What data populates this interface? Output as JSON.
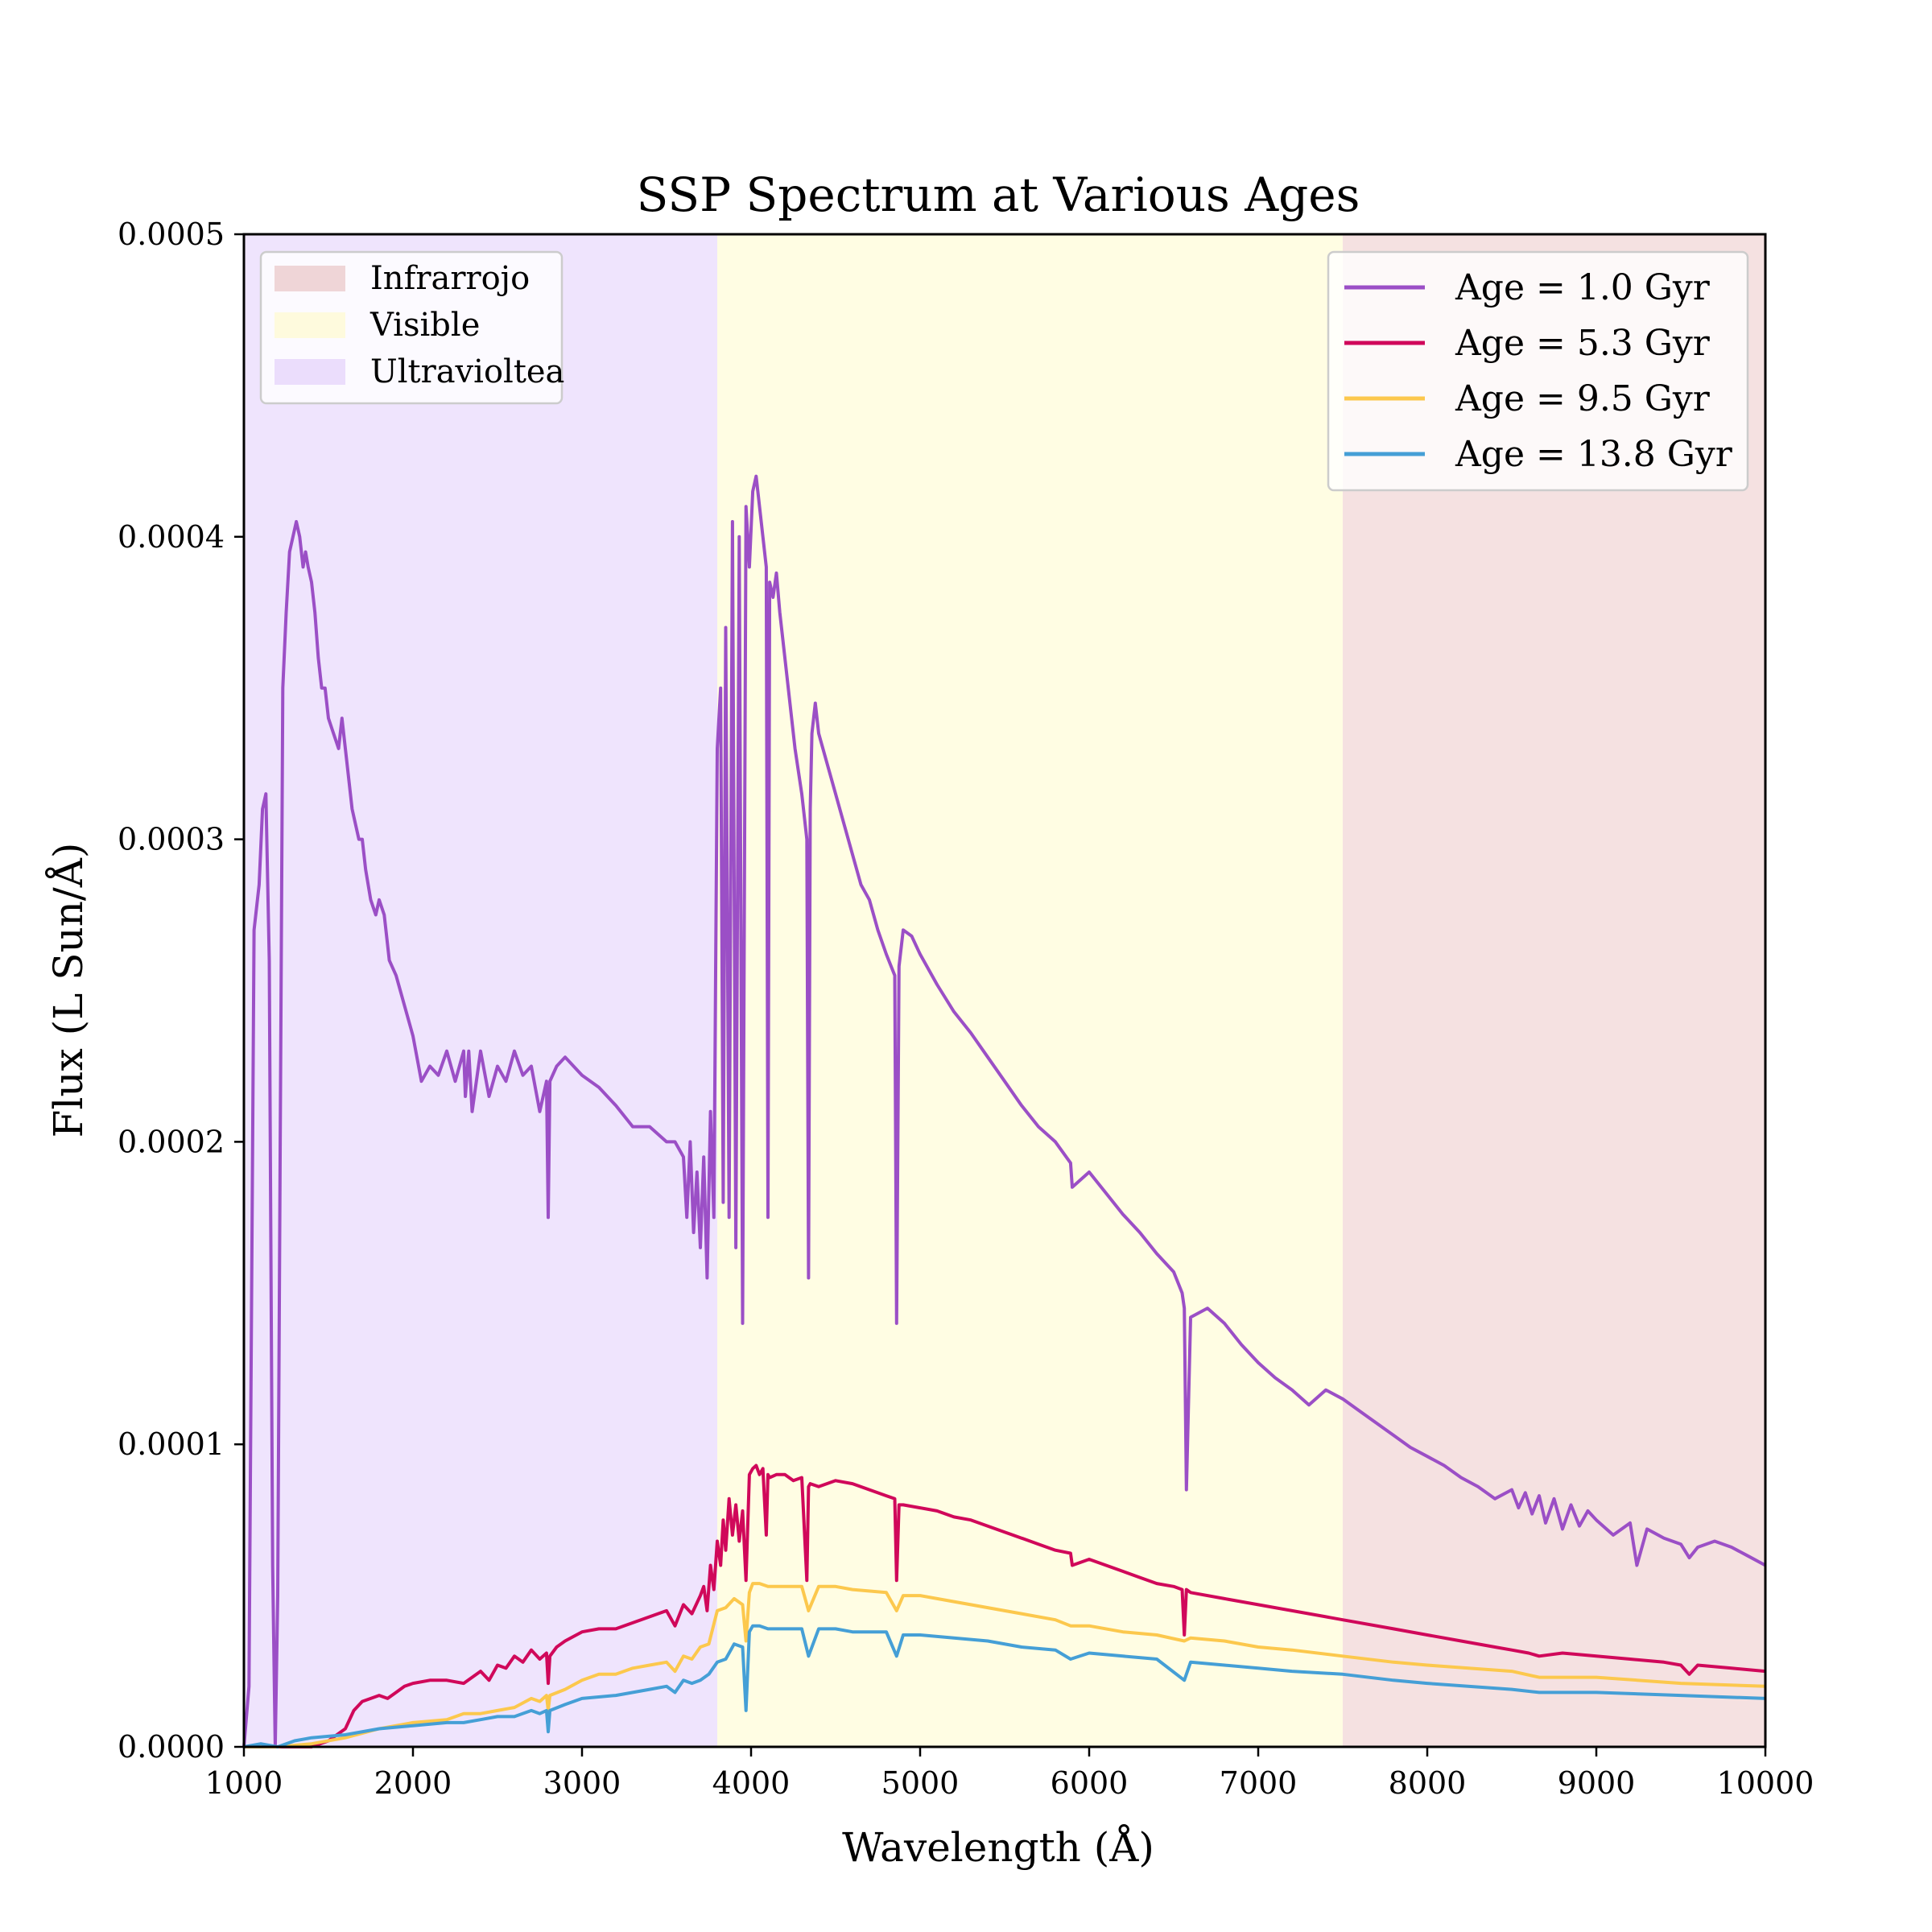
{
  "chart_data": {
    "type": "line",
    "title": "SSP Spectrum at Various Ages",
    "xlabel": "Wavelength (Å)",
    "ylabel": "Flux (L Sun/Å)",
    "xlim": [
      1000,
      10000
    ],
    "ylim": [
      0,
      0.0005
    ],
    "x_ticks": [
      1000,
      2000,
      3000,
      4000,
      5000,
      6000,
      7000,
      8000,
      9000,
      10000
    ],
    "x_tick_labels": [
      "1000",
      "2000",
      "3000",
      "4000",
      "5000",
      "6000",
      "7000",
      "8000",
      "9000",
      "10000"
    ],
    "y_ticks": [
      0,
      0.0001,
      0.0002,
      0.0003,
      0.0004,
      0.0005
    ],
    "y_tick_labels": [
      "0.0000",
      "0.0001",
      "0.0002",
      "0.0003",
      "0.0004",
      "0.0005"
    ],
    "grid": false,
    "bands": [
      {
        "name": "Infrarrojo",
        "x0": 7500,
        "x1": 10000,
        "color": "#e6b8b8"
      },
      {
        "name": "Visible",
        "x0": 3800,
        "x1": 7500,
        "color": "#fffbd0"
      },
      {
        "name": "Ultravioltea",
        "x0": 1000,
        "x1": 3800,
        "color": "#e4d2fb"
      }
    ],
    "band_legend_placement": "upper-left",
    "series_legend_placement": "upper-right",
    "series": [
      {
        "name": "Age = 1.0 Gyr",
        "color": "#9b4fc6",
        "x": [
          1000,
          1030,
          1060,
          1090,
          1110,
          1130,
          1150,
          1170,
          1185,
          1200,
          1215,
          1230,
          1250,
          1270,
          1290,
          1310,
          1330,
          1350,
          1365,
          1380,
          1400,
          1420,
          1440,
          1460,
          1480,
          1500,
          1530,
          1560,
          1580,
          1600,
          1620,
          1640,
          1660,
          1680,
          1700,
          1720,
          1750,
          1780,
          1800,
          1830,
          1860,
          1900,
          1950,
          2000,
          2050,
          2100,
          2150,
          2200,
          2250,
          2300,
          2310,
          2330,
          2350,
          2400,
          2450,
          2500,
          2550,
          2600,
          2650,
          2700,
          2750,
          2790,
          2800,
          2810,
          2850,
          2900,
          2950,
          3000,
          3100,
          3200,
          3300,
          3400,
          3500,
          3550,
          3600,
          3620,
          3640,
          3660,
          3680,
          3700,
          3720,
          3740,
          3760,
          3780,
          3800,
          3820,
          3835,
          3850,
          3870,
          3890,
          3910,
          3930,
          3950,
          3970,
          3990,
          4010,
          4030,
          4050,
          4070,
          4090,
          4100,
          4110,
          4130,
          4150,
          4170,
          4200,
          4230,
          4260,
          4300,
          4330,
          4340,
          4350,
          4360,
          4380,
          4400,
          4450,
          4500,
          4550,
          4600,
          4650,
          4700,
          4750,
          4800,
          4850,
          4861,
          4875,
          4900,
          4950,
          5000,
          5100,
          5200,
          5300,
          5400,
          5500,
          5600,
          5700,
          5800,
          5890,
          5900,
          6000,
          6100,
          6200,
          6300,
          6400,
          6500,
          6550,
          6563,
          6575,
          6600,
          6700,
          6800,
          6900,
          7000,
          7100,
          7200,
          7300,
          7400,
          7500,
          7600,
          7700,
          7800,
          7900,
          8000,
          8100,
          8200,
          8300,
          8400,
          8500,
          8540,
          8580,
          8620,
          8662,
          8700,
          8750,
          8800,
          8850,
          8900,
          8950,
          9000,
          9100,
          9200,
          9240,
          9300,
          9400,
          9500,
          9550,
          9600,
          9700,
          9800,
          9900,
          10000
        ],
        "y": [
          0.0,
          2e-05,
          0.00027,
          0.000285,
          0.00031,
          0.000315,
          0.00026,
          6e-05,
          0.0,
          5e-05,
          0.0002,
          0.00035,
          0.000375,
          0.000395,
          0.0004,
          0.000405,
          0.0004,
          0.00039,
          0.000395,
          0.00039,
          0.000385,
          0.000375,
          0.00036,
          0.00035,
          0.00035,
          0.00034,
          0.000335,
          0.00033,
          0.00034,
          0.00033,
          0.00032,
          0.00031,
          0.000305,
          0.0003,
          0.0003,
          0.00029,
          0.00028,
          0.000275,
          0.00028,
          0.000275,
          0.00026,
          0.000255,
          0.000245,
          0.000235,
          0.00022,
          0.000225,
          0.000222,
          0.00023,
          0.00022,
          0.00023,
          0.000215,
          0.00023,
          0.00021,
          0.00023,
          0.000215,
          0.000225,
          0.00022,
          0.00023,
          0.000222,
          0.000225,
          0.00021,
          0.00022,
          0.000175,
          0.00022,
          0.000225,
          0.000228,
          0.000225,
          0.000222,
          0.000218,
          0.000212,
          0.000205,
          0.000205,
          0.0002,
          0.0002,
          0.000195,
          0.000175,
          0.0002,
          0.00017,
          0.00019,
          0.000165,
          0.000195,
          0.000155,
          0.00021,
          0.000175,
          0.00033,
          0.00035,
          0.00018,
          0.00037,
          0.000175,
          0.000405,
          0.000165,
          0.0004,
          0.00014,
          0.00041,
          0.00039,
          0.000415,
          0.00042,
          0.00041,
          0.0004,
          0.00039,
          0.000175,
          0.000385,
          0.00038,
          0.000388,
          0.000375,
          0.00036,
          0.000345,
          0.00033,
          0.000315,
          0.0003,
          0.000155,
          0.00031,
          0.000335,
          0.000345,
          0.000335,
          0.000325,
          0.000315,
          0.000305,
          0.000295,
          0.000285,
          0.00028,
          0.00027,
          0.000262,
          0.000255,
          0.00014,
          0.000258,
          0.00027,
          0.000268,
          0.000262,
          0.000252,
          0.000243,
          0.000236,
          0.000228,
          0.00022,
          0.000212,
          0.000205,
          0.0002,
          0.000193,
          0.000185,
          0.00019,
          0.000183,
          0.000176,
          0.00017,
          0.000163,
          0.000157,
          0.00015,
          0.000145,
          8.5e-05,
          0.000142,
          0.000145,
          0.00014,
          0.000133,
          0.000127,
          0.000122,
          0.000118,
          0.000113,
          0.000118,
          0.000115,
          0.000111,
          0.000107,
          0.000103,
          9.9e-05,
          9.6e-05,
          9.3e-05,
          8.9e-05,
          8.6e-05,
          8.2e-05,
          8.5e-05,
          7.9e-05,
          8.4e-05,
          7.7e-05,
          8.3e-05,
          7.4e-05,
          8.2e-05,
          7.2e-05,
          8e-05,
          7.3e-05,
          7.8e-05,
          7.5e-05,
          7e-05,
          7.4e-05,
          6e-05,
          7.2e-05,
          6.9e-05,
          6.7e-05,
          6.25e-05,
          6.6e-05,
          6.8e-05,
          6.6e-05,
          6.3e-05,
          6e-05
        ]
      },
      {
        "name": "Age = 5.3 Gyr",
        "color": "#d0085a",
        "x": [
          1000,
          1200,
          1400,
          1500,
          1600,
          1650,
          1700,
          1750,
          1800,
          1850,
          1900,
          1950,
          2000,
          2100,
          2200,
          2300,
          2400,
          2450,
          2500,
          2550,
          2600,
          2650,
          2700,
          2750,
          2790,
          2800,
          2810,
          2850,
          2900,
          3000,
          3100,
          3200,
          3300,
          3400,
          3500,
          3550,
          3600,
          3650,
          3700,
          3720,
          3740,
          3760,
          3780,
          3800,
          3820,
          3835,
          3850,
          3870,
          3890,
          3910,
          3930,
          3950,
          3970,
          3990,
          4010,
          4030,
          4050,
          4070,
          4090,
          4100,
          4110,
          4150,
          4200,
          4250,
          4300,
          4330,
          4340,
          4350,
          4400,
          4500,
          4600,
          4700,
          4800,
          4850,
          4861,
          4875,
          4900,
          5000,
          5100,
          5200,
          5300,
          5400,
          5500,
          5600,
          5700,
          5800,
          5890,
          5900,
          6000,
          6100,
          6200,
          6300,
          6400,
          6500,
          6550,
          6563,
          6575,
          6600,
          6800,
          7000,
          7200,
          7400,
          7500,
          7800,
          8000,
          8200,
          8400,
          8500,
          8600,
          8662,
          8800,
          9000,
          9200,
          9400,
          9500,
          9550,
          9600,
          9800,
          10000
        ],
        "y": [
          0.0,
          0.0,
          0.0,
          2e-06,
          6e-06,
          1.2e-05,
          1.5e-05,
          1.6e-05,
          1.7e-05,
          1.6e-05,
          1.8e-05,
          2e-05,
          2.1e-05,
          2.2e-05,
          2.2e-05,
          2.1e-05,
          2.5e-05,
          2.2e-05,
          2.7e-05,
          2.6e-05,
          3e-05,
          2.8e-05,
          3.2e-05,
          2.9e-05,
          3.1e-05,
          2.1e-05,
          3e-05,
          3.3e-05,
          3.5e-05,
          3.8e-05,
          3.9e-05,
          3.9e-05,
          4.1e-05,
          4.3e-05,
          4.5e-05,
          4e-05,
          4.7e-05,
          4.4e-05,
          5e-05,
          5.3e-05,
          4.5e-05,
          6e-05,
          5.2e-05,
          6.8e-05,
          6e-05,
          7.5e-05,
          6.5e-05,
          8.2e-05,
          7e-05,
          8e-05,
          6.8e-05,
          7.8e-05,
          5.5e-05,
          9e-05,
          9.2e-05,
          9.3e-05,
          9e-05,
          9.2e-05,
          7e-05,
          9e-05,
          8.9e-05,
          9e-05,
          9e-05,
          8.8e-05,
          8.9e-05,
          5.5e-05,
          8.6e-05,
          8.7e-05,
          8.6e-05,
          8.8e-05,
          8.7e-05,
          8.5e-05,
          8.3e-05,
          8.2e-05,
          5.5e-05,
          8e-05,
          8e-05,
          7.9e-05,
          7.8e-05,
          7.6e-05,
          7.5e-05,
          7.3e-05,
          7.1e-05,
          6.9e-05,
          6.7e-05,
          6.5e-05,
          6.4e-05,
          6e-05,
          6.2e-05,
          6e-05,
          5.8e-05,
          5.6e-05,
          5.4e-05,
          5.3e-05,
          5.2e-05,
          3.7e-05,
          5.2e-05,
          5.1e-05,
          4.9e-05,
          4.7e-05,
          4.5e-05,
          4.3e-05,
          4.2e-05,
          3.9e-05,
          3.7e-05,
          3.5e-05,
          3.3e-05,
          3.2e-05,
          3.1e-05,
          3e-05,
          3.1e-05,
          3e-05,
          2.9e-05,
          2.8e-05,
          2.7e-05,
          2.4e-05,
          2.7e-05,
          2.6e-05,
          2.5e-05
        ]
      },
      {
        "name": "Age = 9.5 Gyr",
        "color": "#fcc84d",
        "x": [
          1000,
          1200,
          1400,
          1600,
          1800,
          2000,
          2200,
          2300,
          2400,
          2500,
          2600,
          2700,
          2750,
          2790,
          2800,
          2810,
          2900,
          3000,
          3100,
          3200,
          3300,
          3400,
          3500,
          3550,
          3600,
          3650,
          3700,
          3750,
          3800,
          3850,
          3900,
          3950,
          3970,
          3990,
          4010,
          4050,
          4100,
          4200,
          4300,
          4340,
          4400,
          4500,
          4600,
          4800,
          4861,
          4900,
          5000,
          5200,
          5400,
          5600,
          5800,
          5890,
          6000,
          6200,
          6400,
          6563,
          6600,
          6800,
          7000,
          7200,
          7500,
          7800,
          8000,
          8500,
          8662,
          9000,
          9500,
          10000
        ],
        "y": [
          0.0,
          0.0,
          1e-06,
          3e-06,
          6e-06,
          8e-06,
          9e-06,
          1.1e-05,
          1.1e-05,
          1.2e-05,
          1.3e-05,
          1.6e-05,
          1.5e-05,
          1.7e-05,
          1.2e-05,
          1.7e-05,
          1.9e-05,
          2.2e-05,
          2.4e-05,
          2.4e-05,
          2.6e-05,
          2.7e-05,
          2.8e-05,
          2.5e-05,
          3e-05,
          2.9e-05,
          3.3e-05,
          3.4e-05,
          4.5e-05,
          4.6e-05,
          4.9e-05,
          4.7e-05,
          3.5e-05,
          5.1e-05,
          5.4e-05,
          5.4e-05,
          5.3e-05,
          5.3e-05,
          5.3e-05,
          4.5e-05,
          5.3e-05,
          5.3e-05,
          5.2e-05,
          5.1e-05,
          4.5e-05,
          5e-05,
          5e-05,
          4.8e-05,
          4.6e-05,
          4.4e-05,
          4.2e-05,
          4e-05,
          4e-05,
          3.8e-05,
          3.7e-05,
          3.5e-05,
          3.6e-05,
          3.5e-05,
          3.3e-05,
          3.2e-05,
          3e-05,
          2.8e-05,
          2.7e-05,
          2.5e-05,
          2.3e-05,
          2.3e-05,
          2.1e-05,
          2e-05
        ]
      },
      {
        "name": "Age = 13.8 Gyr",
        "color": "#459fd6",
        "x": [
          1000,
          1100,
          1200,
          1300,
          1400,
          1600,
          1800,
          2000,
          2200,
          2300,
          2400,
          2500,
          2600,
          2700,
          2750,
          2790,
          2800,
          2810,
          2900,
          3000,
          3200,
          3400,
          3500,
          3550,
          3600,
          3650,
          3700,
          3750,
          3800,
          3850,
          3900,
          3950,
          3970,
          3990,
          4010,
          4050,
          4100,
          4200,
          4300,
          4340,
          4400,
          4500,
          4600,
          4800,
          4861,
          4900,
          5000,
          5200,
          5400,
          5600,
          5800,
          5890,
          6000,
          6200,
          6400,
          6563,
          6600,
          6800,
          7000,
          7200,
          7500,
          7800,
          8000,
          8500,
          8662,
          9000,
          9500,
          10000
        ],
        "y": [
          0.0,
          1e-06,
          0.0,
          2e-06,
          3e-06,
          4e-06,
          6e-06,
          7e-06,
          8e-06,
          8e-06,
          9e-06,
          1e-05,
          1e-05,
          1.2e-05,
          1.1e-05,
          1.2e-05,
          5e-06,
          1.2e-05,
          1.4e-05,
          1.6e-05,
          1.7e-05,
          1.9e-05,
          2e-05,
          1.8e-05,
          2.2e-05,
          2.1e-05,
          2.2e-05,
          2.4e-05,
          2.8e-05,
          2.9e-05,
          3.4e-05,
          3.3e-05,
          1.2e-05,
          3.8e-05,
          4e-05,
          4e-05,
          3.9e-05,
          3.9e-05,
          3.9e-05,
          3e-05,
          3.9e-05,
          3.9e-05,
          3.8e-05,
          3.8e-05,
          3e-05,
          3.7e-05,
          3.7e-05,
          3.6e-05,
          3.5e-05,
          3.3e-05,
          3.2e-05,
          2.9e-05,
          3.1e-05,
          3e-05,
          2.9e-05,
          2.2e-05,
          2.8e-05,
          2.7e-05,
          2.6e-05,
          2.5e-05,
          2.4e-05,
          2.2e-05,
          2.1e-05,
          1.9e-05,
          1.8e-05,
          1.8e-05,
          1.7e-05,
          1.6e-05
        ]
      }
    ]
  }
}
